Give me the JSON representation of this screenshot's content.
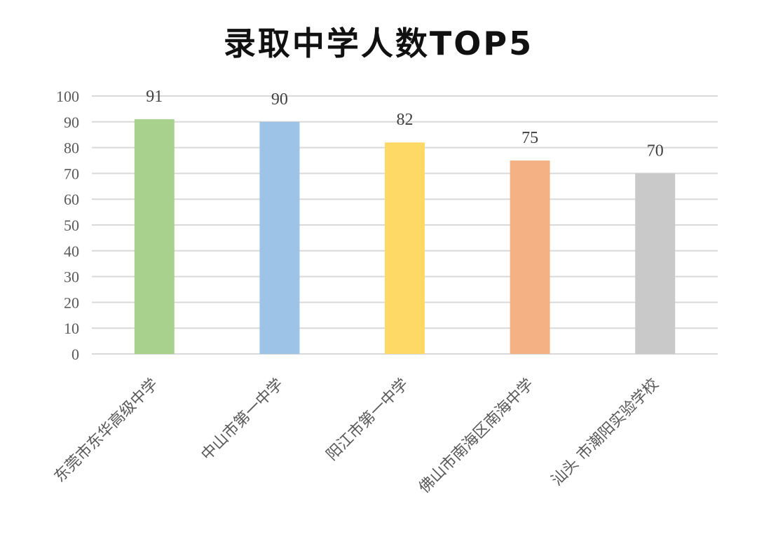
{
  "chart_data": {
    "type": "bar",
    "title": "录取中学人数TOP5",
    "categories": [
      "东莞市东华高级中学",
      "中山市第一中学",
      "阳江市第一中学",
      "佛山市南海区南海中学",
      "汕头 市潮阳实验学校"
    ],
    "values": [
      91,
      90,
      82,
      75,
      70
    ],
    "colors": [
      "#a9d18e",
      "#9dc3e6",
      "#ffd966",
      "#f4b183",
      "#c9c9c9"
    ],
    "ylim": [
      0,
      100
    ],
    "yticks": [
      0,
      10,
      20,
      30,
      40,
      50,
      60,
      70,
      80,
      90,
      100
    ],
    "grid": true,
    "legend": "none",
    "xlabel": "",
    "ylabel": ""
  }
}
